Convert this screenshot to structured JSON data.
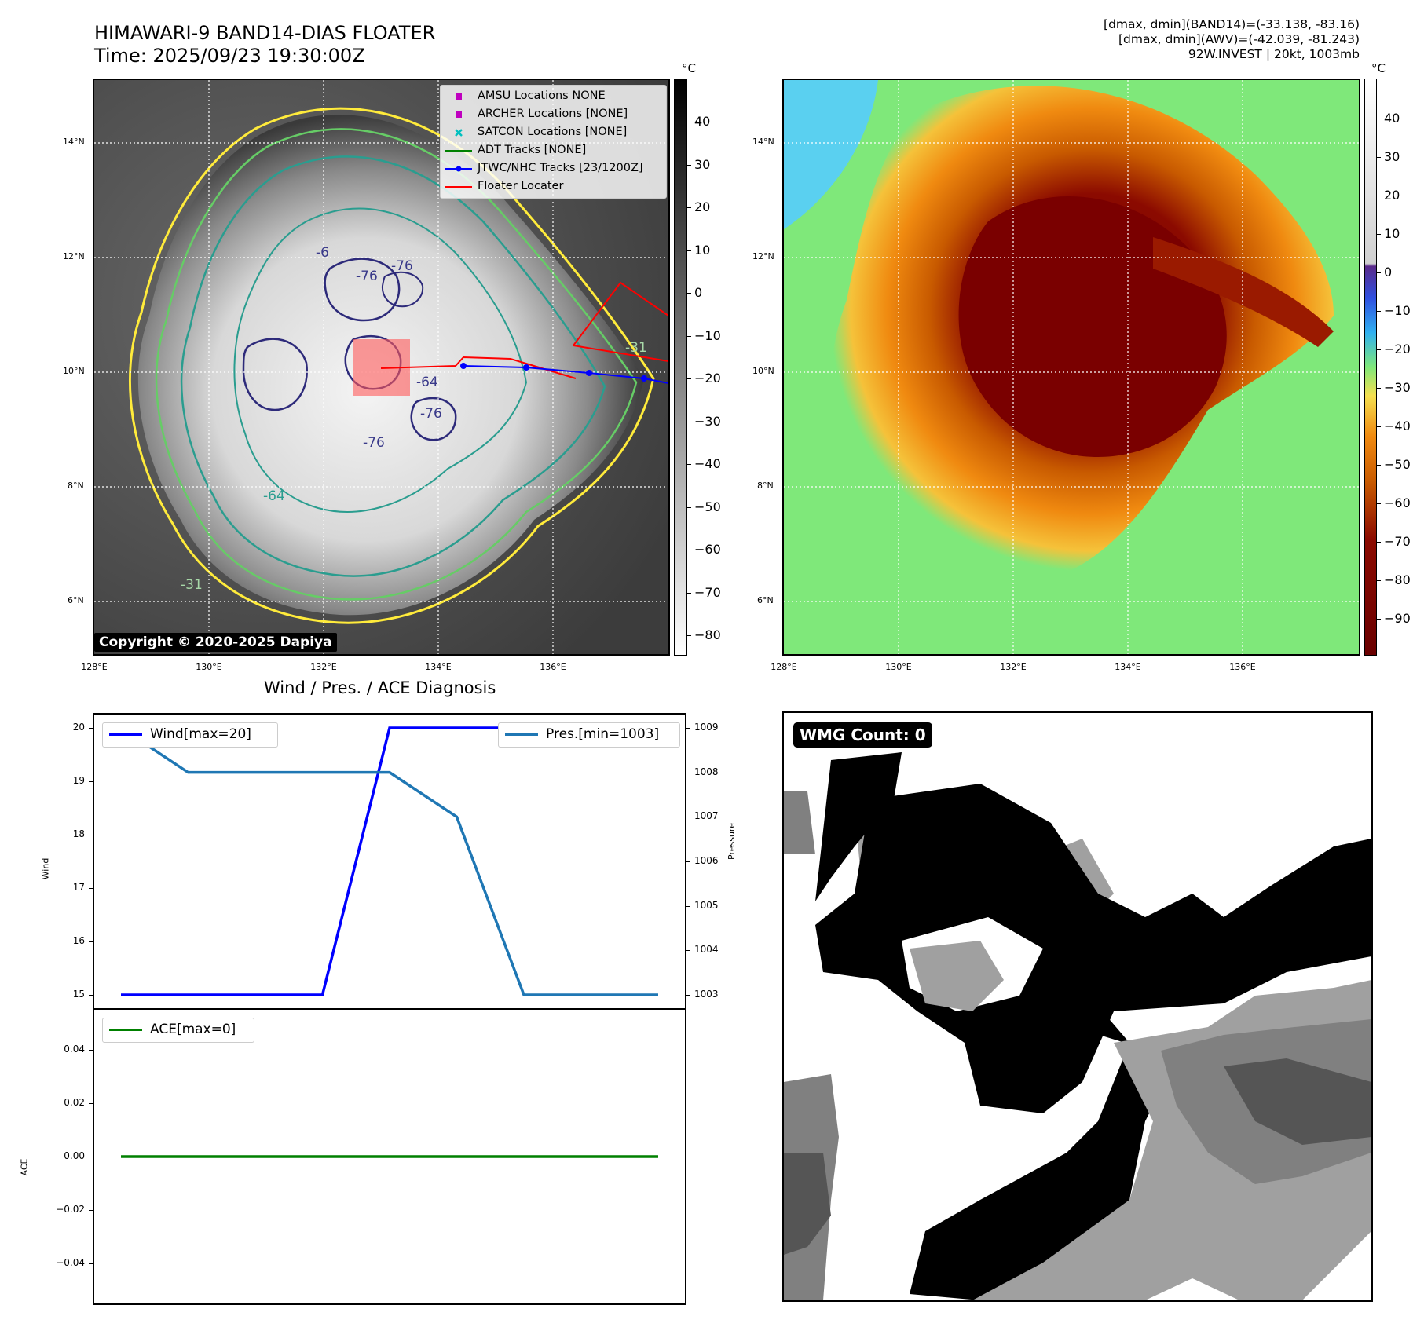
{
  "header": {
    "title_line1": "HIMAWARI-9 BAND14-DIAS FLOATER",
    "title_line2": "Time: 2025/09/23 19:30:00Z",
    "info_line1": "[dmax, dmin](BAND14)=(-33.138, -83.16)",
    "info_line2": "[dmax, dmin](AWV)=(-42.039, -81.243)",
    "info_line3": "92W.INVEST | 20kt, 1003mb"
  },
  "maps": {
    "lat_labels": [
      "14°N",
      "12°N",
      "10°N",
      "8°N",
      "6°N"
    ],
    "lon_labels": [
      "128°E",
      "130°E",
      "132°E",
      "134°E",
      "136°E"
    ],
    "copyright": "Copyright © 2020-2025 Dapiya",
    "contour_labels": [
      "-76",
      "-76",
      "-6",
      "-64",
      "-76",
      "-76",
      "-31",
      "-31",
      "-64"
    ]
  },
  "colorbar_left": {
    "unit": "°C",
    "ticks": [
      "40",
      "30",
      "20",
      "10",
      "0",
      "−10",
      "−20",
      "−30",
      "−40",
      "−50",
      "−60",
      "−70",
      "−80"
    ]
  },
  "colorbar_right": {
    "unit": "°C",
    "ticks": [
      "40",
      "30",
      "20",
      "10",
      "0",
      "−10",
      "−20",
      "−30",
      "−40",
      "−50",
      "−60",
      "−70",
      "−80",
      "−90"
    ]
  },
  "legend": {
    "items": [
      {
        "label": "AMSU Locations NONE",
        "color": "#bf00bf",
        "symbol": "square"
      },
      {
        "label": "ARCHER Locations [NONE]",
        "color": "#bf00bf",
        "symbol": "square"
      },
      {
        "label": "SATCON Locations [NONE]",
        "color": "#00bfbf",
        "symbol": "x"
      },
      {
        "label": "ADT Tracks [NONE]",
        "color": "#008000",
        "symbol": "line"
      },
      {
        "label": "JTWC/NHC Tracks [23/1200Z]",
        "color": "#0000ff",
        "symbol": "line-dot"
      },
      {
        "label": "Floater Locater",
        "color": "#ff0000",
        "symbol": "line"
      }
    ]
  },
  "diagnosis": {
    "title": "Wind / Pres. / ACE Diagnosis",
    "wind_legend": "Wind[max=20]",
    "pres_legend": "Pres.[min=1003]",
    "ace_legend": "ACE[max=0]",
    "wind_axis_label": "Wind",
    "pres_axis_label": "Pressure",
    "ace_axis_label": "ACE",
    "wind_ticks": [
      "20",
      "19",
      "18",
      "17",
      "16",
      "15"
    ],
    "pres_ticks": [
      "1009",
      "1008",
      "1007",
      "1006",
      "1005",
      "1004",
      "1003"
    ],
    "ace_ticks": [
      "0.04",
      "0.02",
      "0.00",
      "−0.02",
      "−0.04"
    ]
  },
  "wmg": {
    "label": "WMG Count: 0"
  },
  "colors": {
    "wind": "#0000ff",
    "pressure": "#1f77b4",
    "ace": "#008000"
  },
  "chart_data": [
    {
      "type": "line",
      "title": "Wind / Pres. / ACE Diagnosis",
      "x": [
        0,
        1,
        2,
        3,
        4,
        5,
        6,
        7,
        8
      ],
      "series": [
        {
          "name": "Wind[max=20]",
          "axis": "left",
          "values": [
            15,
            15,
            15,
            15,
            20,
            20,
            20,
            20,
            20
          ]
        },
        {
          "name": "Pres.[min=1003]",
          "axis": "right",
          "values": [
            1009,
            1008,
            1008,
            1008,
            1008,
            1007,
            1003,
            1003,
            1003
          ]
        }
      ],
      "ylabel": "Wind",
      "ylim": [
        14.75,
        20.25
      ],
      "y2label": "Pressure",
      "y2lim": [
        1002.7,
        1009.3
      ]
    },
    {
      "type": "line",
      "x": [
        0,
        1,
        2,
        3,
        4,
        5,
        6,
        7,
        8
      ],
      "series": [
        {
          "name": "ACE[max=0]",
          "values": [
            0,
            0,
            0,
            0,
            0,
            0,
            0,
            0,
            0
          ]
        }
      ],
      "ylabel": "ACE",
      "ylim": [
        -0.055,
        0.055
      ]
    }
  ]
}
